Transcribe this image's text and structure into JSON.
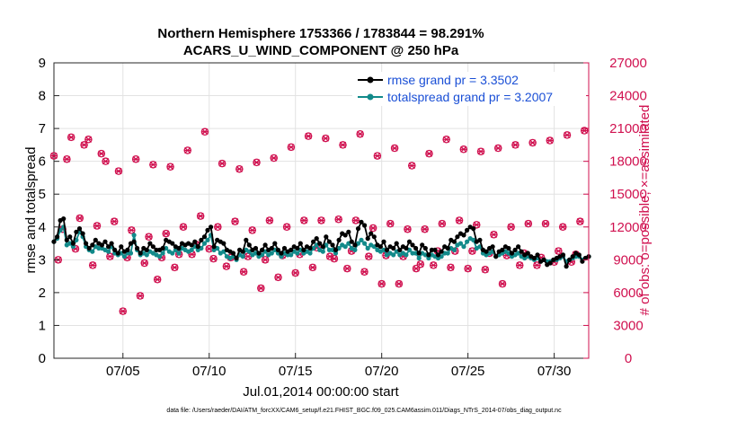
{
  "chart_data": {
    "type": "line",
    "title_line1": "Northern Hemisphere 1753366 / 1783844 = 98.291%",
    "title_line2": "ACARS_U_WIND_COMPONENT @ 250 hPa",
    "xlabel": "Jul.01,2014 00:00:00 start",
    "ylabel_left": "rmse and totalspread",
    "ylabel_right": "# of obs: o=possible; ×=assimilated",
    "footer": "data file: /Users/raeder/DAI/ATM_forcXX/CAM6_setup/f.e21.FHIST_BGC.f09_025.CAM6assim.011/Diags_NTrS_2014-07/obs_diag_output.nc",
    "ylim_left": [
      0,
      9
    ],
    "yticks_left": [
      "0",
      "1",
      "2",
      "3",
      "4",
      "5",
      "6",
      "7",
      "8",
      "9"
    ],
    "ylim_right": [
      0,
      27000
    ],
    "yticks_right": [
      "0",
      "3000",
      "6000",
      "9000",
      "12000",
      "15000",
      "18000",
      "21000",
      "24000",
      "27000"
    ],
    "xlim_days": [
      1,
      32
    ],
    "xticks": [
      {
        "day": 5,
        "label": "07/05"
      },
      {
        "day": 10,
        "label": "07/10"
      },
      {
        "day": 15,
        "label": "07/15"
      },
      {
        "day": 20,
        "label": "07/20"
      },
      {
        "day": 25,
        "label": "07/25"
      },
      {
        "day": 30,
        "label": "07/30"
      }
    ],
    "grid": true,
    "legend": [
      "rmse grand pr = 3.3502",
      "totalspread grand pr = 3.2007"
    ],
    "legend_position": "top-right",
    "colors": {
      "rmse": "#000000",
      "spread": "#128a8a",
      "obs": "#d0104f",
      "legend_text": "#1a4fd6"
    },
    "series": [
      {
        "name": "rmse",
        "values": [
          3.55,
          3.7,
          4.2,
          4.25,
          3.6,
          3.7,
          3.5,
          3.85,
          3.95,
          3.8,
          3.5,
          3.35,
          3.45,
          3.6,
          3.5,
          3.45,
          3.55,
          3.4,
          3.5,
          3.3,
          3.2,
          3.4,
          3.25,
          3.3,
          3.5,
          3.55,
          3.35,
          3.2,
          3.35,
          3.3,
          3.5,
          3.4,
          3.3,
          3.3,
          3.35,
          3.6,
          3.55,
          3.5,
          3.4,
          3.35,
          3.5,
          3.45,
          3.5,
          3.45,
          3.55,
          3.4,
          3.6,
          3.7,
          3.9,
          4.0,
          3.4,
          3.6,
          3.55,
          3.5,
          3.3,
          3.25,
          3.2,
          3.05,
          3.3,
          3.25,
          3.6,
          3.45,
          3.3,
          3.35,
          3.2,
          3.3,
          3.45,
          3.3,
          3.35,
          3.5,
          3.3,
          3.2,
          3.35,
          3.25,
          3.3,
          3.4,
          3.35,
          3.5,
          3.3,
          3.4,
          3.35,
          3.55,
          3.65,
          3.5,
          3.4,
          3.7,
          3.55,
          3.45,
          3.3,
          3.6,
          3.8,
          3.75,
          3.85,
          3.55,
          3.45,
          3.95,
          4.15,
          4.05,
          3.65,
          3.8,
          3.7,
          3.45,
          3.4,
          3.55,
          3.3,
          3.4,
          3.35,
          3.5,
          3.3,
          3.4,
          3.35,
          3.55,
          3.45,
          3.35,
          3.2,
          3.45,
          3.35,
          3.15,
          3.3,
          3.3,
          3.15,
          3.25,
          3.4,
          3.35,
          3.6,
          3.55,
          3.7,
          3.8,
          3.75,
          3.9,
          4.0,
          3.95,
          3.55,
          3.6,
          3.3,
          3.25,
          3.35,
          3.4,
          3.1,
          3.25,
          3.3,
          3.4,
          3.35,
          3.2,
          3.3,
          3.4,
          3.25,
          3.15,
          3.2,
          3.1,
          3.05,
          3.15,
          2.95,
          3.0,
          2.85,
          2.9,
          3.0,
          3.05,
          3.1,
          3.15,
          2.8,
          3.0,
          3.1,
          3.2,
          3.15,
          2.95,
          3.05,
          3.1
        ]
      },
      {
        "name": "totalspread",
        "values": [
          3.55,
          3.65,
          3.9,
          4.0,
          3.45,
          3.5,
          3.4,
          3.6,
          3.85,
          3.7,
          3.4,
          3.3,
          3.25,
          3.4,
          3.35,
          3.35,
          3.3,
          3.25,
          3.4,
          3.2,
          3.15,
          3.2,
          3.1,
          3.2,
          3.2,
          3.75,
          3.3,
          3.15,
          3.2,
          3.15,
          3.25,
          3.2,
          3.15,
          3.1,
          3.2,
          3.35,
          3.25,
          3.2,
          3.3,
          3.2,
          3.35,
          3.3,
          3.25,
          3.3,
          3.4,
          3.3,
          3.35,
          3.5,
          3.6,
          3.75,
          3.3,
          3.35,
          3.2,
          3.25,
          3.1,
          3.05,
          3.1,
          3.0,
          3.15,
          3.1,
          3.3,
          3.25,
          3.15,
          3.2,
          3.1,
          3.15,
          3.25,
          3.15,
          3.2,
          3.3,
          3.2,
          3.1,
          3.2,
          3.15,
          3.15,
          3.25,
          3.2,
          3.3,
          3.2,
          3.25,
          3.2,
          3.35,
          3.45,
          3.3,
          3.25,
          3.45,
          3.3,
          3.3,
          3.2,
          3.35,
          3.45,
          3.4,
          3.5,
          3.35,
          3.3,
          3.5,
          3.6,
          3.5,
          3.35,
          3.45,
          3.4,
          3.3,
          3.25,
          3.3,
          3.15,
          3.2,
          3.15,
          3.25,
          3.15,
          3.2,
          3.15,
          3.3,
          3.2,
          3.2,
          3.05,
          3.2,
          3.15,
          3.05,
          3.15,
          3.1,
          3.05,
          3.1,
          3.2,
          3.2,
          3.35,
          3.3,
          3.45,
          3.5,
          3.4,
          3.55,
          3.65,
          3.6,
          3.35,
          3.4,
          3.2,
          3.15,
          3.2,
          3.25,
          3.1,
          3.15,
          3.2,
          3.25,
          3.2,
          3.1,
          3.15,
          3.2,
          3.1,
          3.05,
          3.1,
          3.05,
          3.0,
          3.05,
          2.95,
          3.0,
          2.95,
          2.95,
          3.0,
          3.0,
          3.05,
          3.1,
          2.95,
          3.0,
          3.05,
          3.1,
          3.1,
          3.0,
          3.05,
          3.1
        ]
      }
    ],
    "obs_counts": [
      {
        "day": 1.0,
        "n": 18500
      },
      {
        "day": 1.25,
        "n": 9000
      },
      {
        "day": 1.5,
        "n": 11800
      },
      {
        "day": 1.75,
        "n": 18200
      },
      {
        "day": 2.0,
        "n": 20200
      },
      {
        "day": 2.25,
        "n": 10000
      },
      {
        "day": 2.5,
        "n": 12800
      },
      {
        "day": 2.75,
        "n": 19500
      },
      {
        "day": 3.0,
        "n": 20000
      },
      {
        "day": 3.25,
        "n": 8500
      },
      {
        "day": 3.5,
        "n": 12100
      },
      {
        "day": 3.75,
        "n": 18700
      },
      {
        "day": 4.0,
        "n": 18000
      },
      {
        "day": 4.25,
        "n": 9300
      },
      {
        "day": 4.5,
        "n": 12500
      },
      {
        "day": 4.75,
        "n": 17100
      },
      {
        "day": 5.0,
        "n": 4300
      },
      {
        "day": 5.25,
        "n": 9200
      },
      {
        "day": 5.5,
        "n": 11700
      },
      {
        "day": 5.75,
        "n": 18200
      },
      {
        "day": 6.0,
        "n": 5700
      },
      {
        "day": 6.25,
        "n": 8700
      },
      {
        "day": 6.5,
        "n": 11100
      },
      {
        "day": 6.75,
        "n": 17700
      },
      {
        "day": 7.0,
        "n": 7200
      },
      {
        "day": 7.25,
        "n": 9200
      },
      {
        "day": 7.5,
        "n": 11400
      },
      {
        "day": 7.75,
        "n": 17500
      },
      {
        "day": 8.0,
        "n": 8300
      },
      {
        "day": 8.25,
        "n": 9500
      },
      {
        "day": 8.5,
        "n": 12000
      },
      {
        "day": 8.75,
        "n": 19000
      },
      {
        "day": 9.0,
        "n": 9500
      },
      {
        "day": 9.25,
        "n": 10400
      },
      {
        "day": 9.5,
        "n": 13000
      },
      {
        "day": 9.75,
        "n": 20700
      },
      {
        "day": 10.0,
        "n": 10000
      },
      {
        "day": 10.25,
        "n": 9100
      },
      {
        "day": 10.5,
        "n": 12000
      },
      {
        "day": 10.75,
        "n": 17800
      },
      {
        "day": 11.0,
        "n": 8400
      },
      {
        "day": 11.25,
        "n": 9200
      },
      {
        "day": 11.5,
        "n": 12500
      },
      {
        "day": 11.75,
        "n": 17300
      },
      {
        "day": 12.0,
        "n": 7900
      },
      {
        "day": 12.25,
        "n": 9300
      },
      {
        "day": 12.5,
        "n": 11700
      },
      {
        "day": 12.75,
        "n": 17900
      },
      {
        "day": 13.0,
        "n": 6400
      },
      {
        "day": 13.25,
        "n": 9000
      },
      {
        "day": 13.5,
        "n": 12600
      },
      {
        "day": 13.75,
        "n": 18300
      },
      {
        "day": 14.0,
        "n": 7400
      },
      {
        "day": 14.25,
        "n": 9400
      },
      {
        "day": 14.5,
        "n": 12000
      },
      {
        "day": 14.75,
        "n": 19300
      },
      {
        "day": 15.0,
        "n": 7800
      },
      {
        "day": 15.25,
        "n": 9500
      },
      {
        "day": 15.5,
        "n": 12600
      },
      {
        "day": 15.75,
        "n": 20300
      },
      {
        "day": 16.0,
        "n": 8300
      },
      {
        "day": 16.25,
        "n": 10100
      },
      {
        "day": 16.5,
        "n": 12600
      },
      {
        "day": 16.75,
        "n": 20100
      },
      {
        "day": 17.0,
        "n": 9300
      },
      {
        "day": 17.25,
        "n": 9100
      },
      {
        "day": 17.5,
        "n": 12700
      },
      {
        "day": 17.75,
        "n": 19500
      },
      {
        "day": 18.0,
        "n": 8200
      },
      {
        "day": 18.25,
        "n": 9800
      },
      {
        "day": 18.5,
        "n": 12600
      },
      {
        "day": 18.75,
        "n": 20500
      },
      {
        "day": 19.0,
        "n": 7900
      },
      {
        "day": 19.25,
        "n": 9300
      },
      {
        "day": 19.5,
        "n": 11900
      },
      {
        "day": 19.75,
        "n": 18500
      },
      {
        "day": 20.0,
        "n": 6800
      },
      {
        "day": 20.25,
        "n": 9400
      },
      {
        "day": 20.5,
        "n": 12300
      },
      {
        "day": 20.75,
        "n": 19200
      },
      {
        "day": 21.0,
        "n": 6800
      },
      {
        "day": 21.25,
        "n": 9300
      },
      {
        "day": 21.5,
        "n": 11800
      },
      {
        "day": 21.75,
        "n": 17600
      },
      {
        "day": 22.0,
        "n": 8200
      },
      {
        "day": 22.25,
        "n": 8600
      },
      {
        "day": 22.5,
        "n": 11800
      },
      {
        "day": 22.75,
        "n": 18700
      },
      {
        "day": 23.0,
        "n": 8500
      },
      {
        "day": 23.25,
        "n": 9800
      },
      {
        "day": 23.5,
        "n": 12300
      },
      {
        "day": 23.75,
        "n": 20000
      },
      {
        "day": 24.0,
        "n": 8300
      },
      {
        "day": 24.25,
        "n": 9800
      },
      {
        "day": 24.5,
        "n": 12600
      },
      {
        "day": 24.75,
        "n": 19100
      },
      {
        "day": 25.0,
        "n": 8200
      },
      {
        "day": 25.25,
        "n": 9800
      },
      {
        "day": 25.5,
        "n": 12200
      },
      {
        "day": 25.75,
        "n": 18900
      },
      {
        "day": 26.0,
        "n": 8100
      },
      {
        "day": 26.25,
        "n": 9600
      },
      {
        "day": 26.5,
        "n": 11300
      },
      {
        "day": 26.75,
        "n": 19200
      },
      {
        "day": 27.0,
        "n": 6800
      },
      {
        "day": 27.25,
        "n": 9400
      },
      {
        "day": 27.5,
        "n": 12000
      },
      {
        "day": 27.75,
        "n": 19500
      },
      {
        "day": 28.0,
        "n": 8500
      },
      {
        "day": 28.25,
        "n": 9600
      },
      {
        "day": 28.5,
        "n": 12300
      },
      {
        "day": 28.75,
        "n": 19700
      },
      {
        "day": 29.0,
        "n": 8500
      },
      {
        "day": 29.25,
        "n": 9200
      },
      {
        "day": 29.5,
        "n": 12300
      },
      {
        "day": 29.75,
        "n": 19900
      },
      {
        "day": 30.0,
        "n": 8800
      },
      {
        "day": 30.25,
        "n": 9800
      },
      {
        "day": 30.5,
        "n": 12000
      },
      {
        "day": 30.75,
        "n": 20400
      },
      {
        "day": 31.0,
        "n": 8800
      },
      {
        "day": 31.25,
        "n": 9500
      },
      {
        "day": 31.5,
        "n": 12500
      },
      {
        "day": 31.75,
        "n": 20800
      }
    ]
  }
}
